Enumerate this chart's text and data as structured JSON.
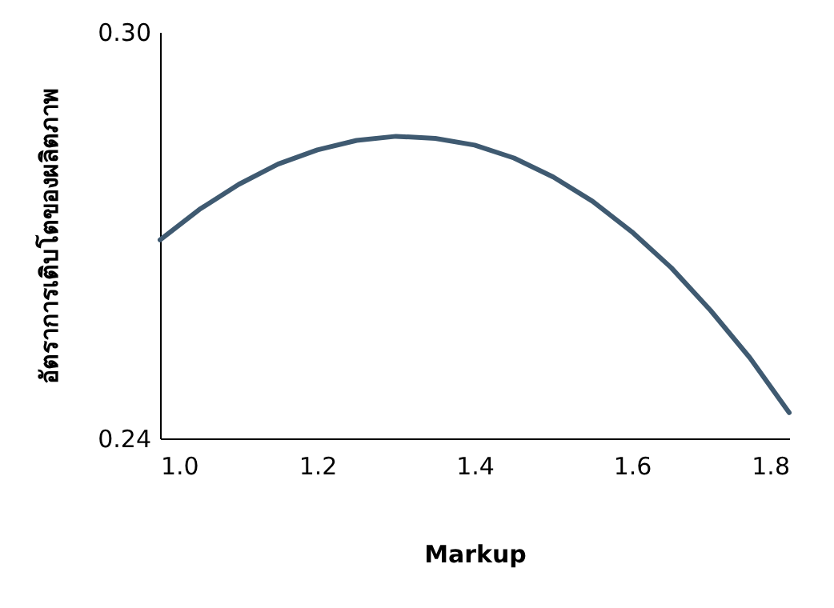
{
  "chart_data": {
    "type": "line",
    "xlabel": "Markup",
    "ylabel": "อัตราการเติบโตของผลิตภาพ",
    "x": [
      1.0,
      1.05,
      1.1,
      1.15,
      1.2,
      1.25,
      1.3,
      1.35,
      1.4,
      1.45,
      1.5,
      1.55,
      1.6,
      1.65,
      1.7,
      1.75,
      1.8
    ],
    "series": [
      {
        "color": "#3f5a71",
        "values": [
          0.2693,
          0.2738,
          0.2775,
          0.2805,
          0.2826,
          0.284,
          0.2846,
          0.2843,
          0.2833,
          0.2814,
          0.2786,
          0.275,
          0.2705,
          0.2652,
          0.2589,
          0.2519,
          0.2438
        ]
      }
    ],
    "xlim": [
      1.0,
      1.8
    ],
    "xticks": [
      {
        "value": 1.0,
        "label": "1.0"
      },
      1.2,
      1.4,
      1.6,
      1.8
    ],
    "ylim": [
      0.24,
      0.3
    ],
    "yticks": [
      0.24,
      {
        "value": 0.3,
        "label": "0.30"
      }
    ],
    "grid": false,
    "marker": "none",
    "line_style": "solid"
  }
}
